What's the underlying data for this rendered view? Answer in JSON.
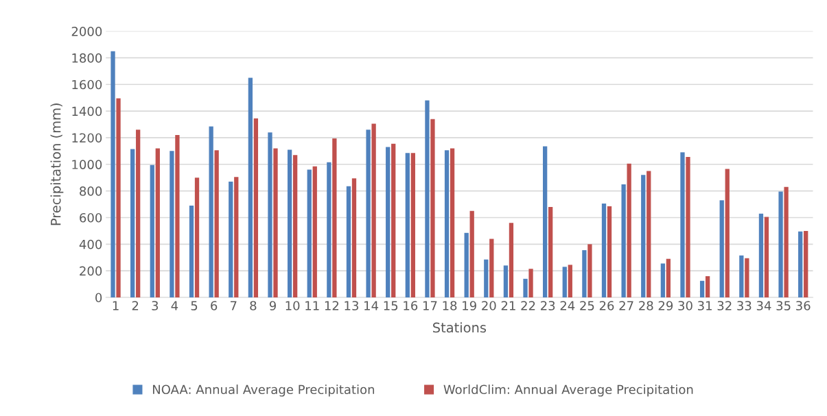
{
  "chart_data": {
    "type": "bar",
    "xlabel": "Stations",
    "ylabel": "Precipitation (mm)",
    "categories": [
      "1",
      "2",
      "3",
      "4",
      "5",
      "6",
      "7",
      "8",
      "9",
      "10",
      "11",
      "12",
      "13",
      "14",
      "15",
      "16",
      "17",
      "18",
      "19",
      "20",
      "21",
      "22",
      "23",
      "24",
      "25",
      "26",
      "27",
      "28",
      "29",
      "30",
      "31",
      "32",
      "33",
      "34",
      "35",
      "36"
    ],
    "series": [
      {
        "name": "NOAA: Annual Average Precipitation",
        "color": "#4f81bd",
        "values": [
          1850,
          1115,
          995,
          1100,
          690,
          1285,
          870,
          1650,
          1240,
          1110,
          960,
          1015,
          835,
          1260,
          1130,
          1085,
          1480,
          1105,
          485,
          285,
          240,
          140,
          1135,
          230,
          355,
          705,
          850,
          920,
          255,
          1090,
          125,
          730,
          315,
          630,
          795,
          495
        ]
      },
      {
        "name": "WorldClim: Annual Average Precipitation",
        "color": "#c0504d",
        "values": [
          1495,
          1260,
          1120,
          1220,
          900,
          1105,
          905,
          1345,
          1120,
          1070,
          985,
          1195,
          895,
          1305,
          1155,
          1085,
          1340,
          1120,
          650,
          440,
          560,
          215,
          680,
          245,
          400,
          685,
          1005,
          950,
          290,
          1055,
          160,
          965,
          295,
          605,
          830,
          500
        ]
      }
    ],
    "ylim": [
      0,
      2000
    ],
    "yticks": [
      0,
      200,
      400,
      600,
      800,
      1000,
      1200,
      1400,
      1600,
      1800,
      2000
    ],
    "grid": "y",
    "legend": "bottom"
  }
}
